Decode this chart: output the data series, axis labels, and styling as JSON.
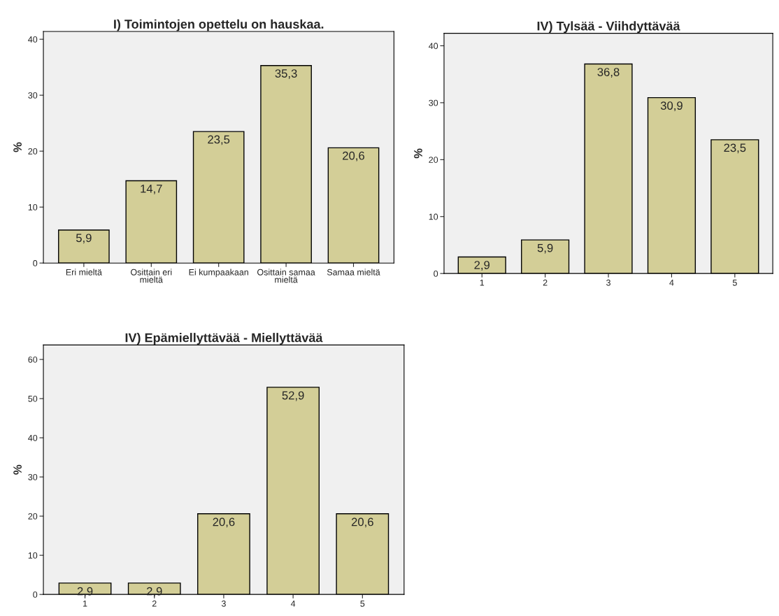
{
  "chart_data": [
    {
      "type": "bar",
      "title": "I) Toimintojen opettelu on hauskaa.",
      "ylabel": "%",
      "categories": [
        "Eri mieltä",
        "Osittain eri\nmieltä",
        "Ei kumpaakaan",
        "Osittain samaa\nmieltä",
        "Samaa mieltä"
      ],
      "values": [
        5.9,
        14.7,
        23.5,
        35.3,
        20.6
      ],
      "value_labels": [
        "5,9",
        "14,7",
        "23,5",
        "35,3",
        "20,6"
      ],
      "color": "#d3ce97",
      "ylim": [
        0,
        41.4
      ],
      "yticks": [
        0,
        10,
        20,
        30,
        40
      ],
      "grid": false,
      "legend": false
    },
    {
      "type": "bar",
      "title": "IV) Tylsää - Viihdyttävää",
      "ylabel": "%",
      "categories": [
        "1",
        "2",
        "3",
        "4",
        "5"
      ],
      "values": [
        2.9,
        5.9,
        36.8,
        30.9,
        23.5
      ],
      "value_labels": [
        "2,9",
        "5,9",
        "36,8",
        "30,9",
        "23,5"
      ],
      "color": "#d3ce97",
      "ylim": [
        0,
        42.2
      ],
      "yticks": [
        0,
        10,
        20,
        30,
        40
      ],
      "grid": false,
      "legend": false
    },
    {
      "type": "bar",
      "title": "IV) Epämiellyttävää - Miellyttävää",
      "ylabel": "%",
      "categories": [
        "1",
        "2",
        "3",
        "4",
        "5"
      ],
      "values": [
        2.9,
        2.9,
        20.6,
        52.9,
        20.6
      ],
      "value_labels": [
        "2,9",
        "2,9",
        "20,6",
        "52,9",
        "20,6"
      ],
      "color": "#d3ce97",
      "ylim": [
        0,
        63.7
      ],
      "yticks": [
        0,
        10,
        20,
        30,
        40,
        50,
        60
      ],
      "grid": false,
      "legend": false
    }
  ]
}
